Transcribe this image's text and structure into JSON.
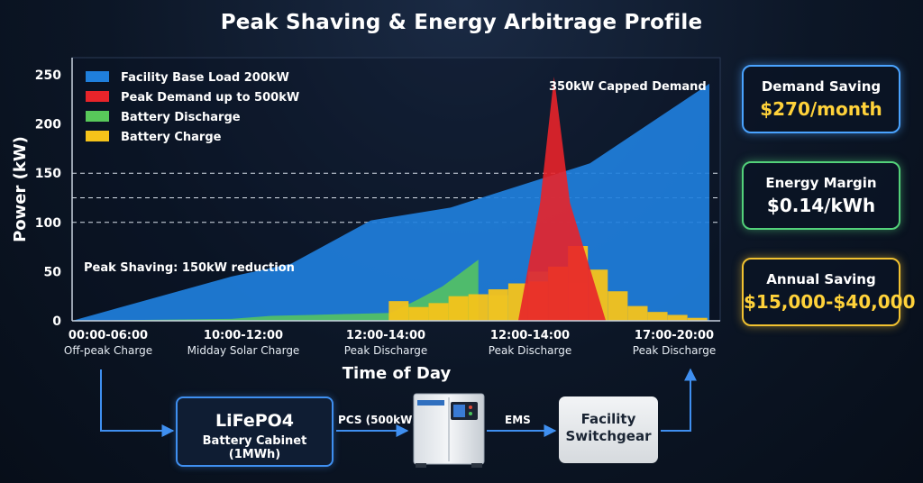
{
  "title": "Peak Shaving & Energy Arbitrage Profile",
  "chart_data": {
    "type": "area",
    "title": "Peak Shaving & Energy Arbitrage Profile",
    "xlabel": "Time of Day",
    "ylabel": "Power (kW)",
    "ylim": [
      0,
      250
    ],
    "yticks": [
      0,
      50,
      100,
      150,
      200,
      250
    ],
    "x_tick_labels": [
      {
        "time": "00:00-06:00",
        "label": "Off-peak Charge"
      },
      {
        "time": "10:00-12:00",
        "label": "Midday Solar Charge"
      },
      {
        "time": "12:00-14:00",
        "label": "Peak Discharge"
      },
      {
        "time": "12:00-14:00",
        "label": "Peak Discharge"
      },
      {
        "time": "17:00-20:00",
        "label": "Peak Discharge"
      }
    ],
    "legend_position": "top-left",
    "grid": "dashed lines at 100, 125, 150",
    "series": [
      {
        "name": "Facility Base Load 200kW",
        "color": "#1f7fdc",
        "x": [
          0,
          4,
          5.5,
          7.5,
          9.5,
          13,
          16
        ],
        "values": [
          0,
          45,
          58,
          102,
          115,
          160,
          241
        ]
      },
      {
        "name": "Peak Demand up to 500kW",
        "color": "#e8242a",
        "x": [
          11.2,
          11.75,
          12.1,
          12.5,
          13.4
        ],
        "values": [
          0,
          120,
          248,
          120,
          0
        ]
      },
      {
        "name": "Battery Discharge",
        "color": "#58c85a",
        "x": [
          0,
          4,
          5,
          6,
          7,
          8,
          8.7,
          9.3,
          10.2
        ],
        "values": [
          0,
          2,
          5,
          6,
          7,
          8,
          22,
          35,
          62
        ]
      },
      {
        "name": "Battery Charge",
        "color": "#f5c31a",
        "bars": [
          {
            "x": 8.2,
            "value": 20
          },
          {
            "x": 8.7,
            "value": 14
          },
          {
            "x": 9.2,
            "value": 18
          },
          {
            "x": 9.7,
            "value": 25
          },
          {
            "x": 10.2,
            "value": 27
          },
          {
            "x": 10.7,
            "value": 32
          },
          {
            "x": 11.2,
            "value": 38
          },
          {
            "x": 11.7,
            "value": 40
          },
          {
            "x": 12.2,
            "value": 55
          },
          {
            "x": 12.7,
            "value": 76
          },
          {
            "x": 13.2,
            "value": 52
          },
          {
            "x": 13.7,
            "value": 30
          },
          {
            "x": 14.2,
            "value": 15
          },
          {
            "x": 14.7,
            "value": 9
          },
          {
            "x": 15.2,
            "value": 6
          },
          {
            "x": 15.7,
            "value": 3
          }
        ]
      },
      {
        "name": "",
        "color": "#6cd4a8",
        "bars": [
          {
            "x": 10.7,
            "value": 26
          },
          {
            "x": 11.7,
            "value": 50
          },
          {
            "x": 12.7,
            "value": 39
          }
        ]
      }
    ],
    "annotations": [
      {
        "text": "350kW Capped Demand"
      },
      {
        "text": "Peak Shaving: 150kW reduction"
      }
    ]
  },
  "kpis": [
    {
      "label": "Demand Saving",
      "value": "$270/month"
    },
    {
      "label": "Energy Margin",
      "value": "$0.14/kWh"
    },
    {
      "label": "Annual Saving",
      "value": "$15,000-$40,000"
    }
  ],
  "flow": {
    "battery_line1": "LiFePO4",
    "battery_line2": "Battery Cabinet (1MWh)",
    "pcs_label": "PCS (500kW)",
    "ems_label": "EMS",
    "switchgear_line1": "Facility",
    "switchgear_line2": "Switchgear"
  }
}
